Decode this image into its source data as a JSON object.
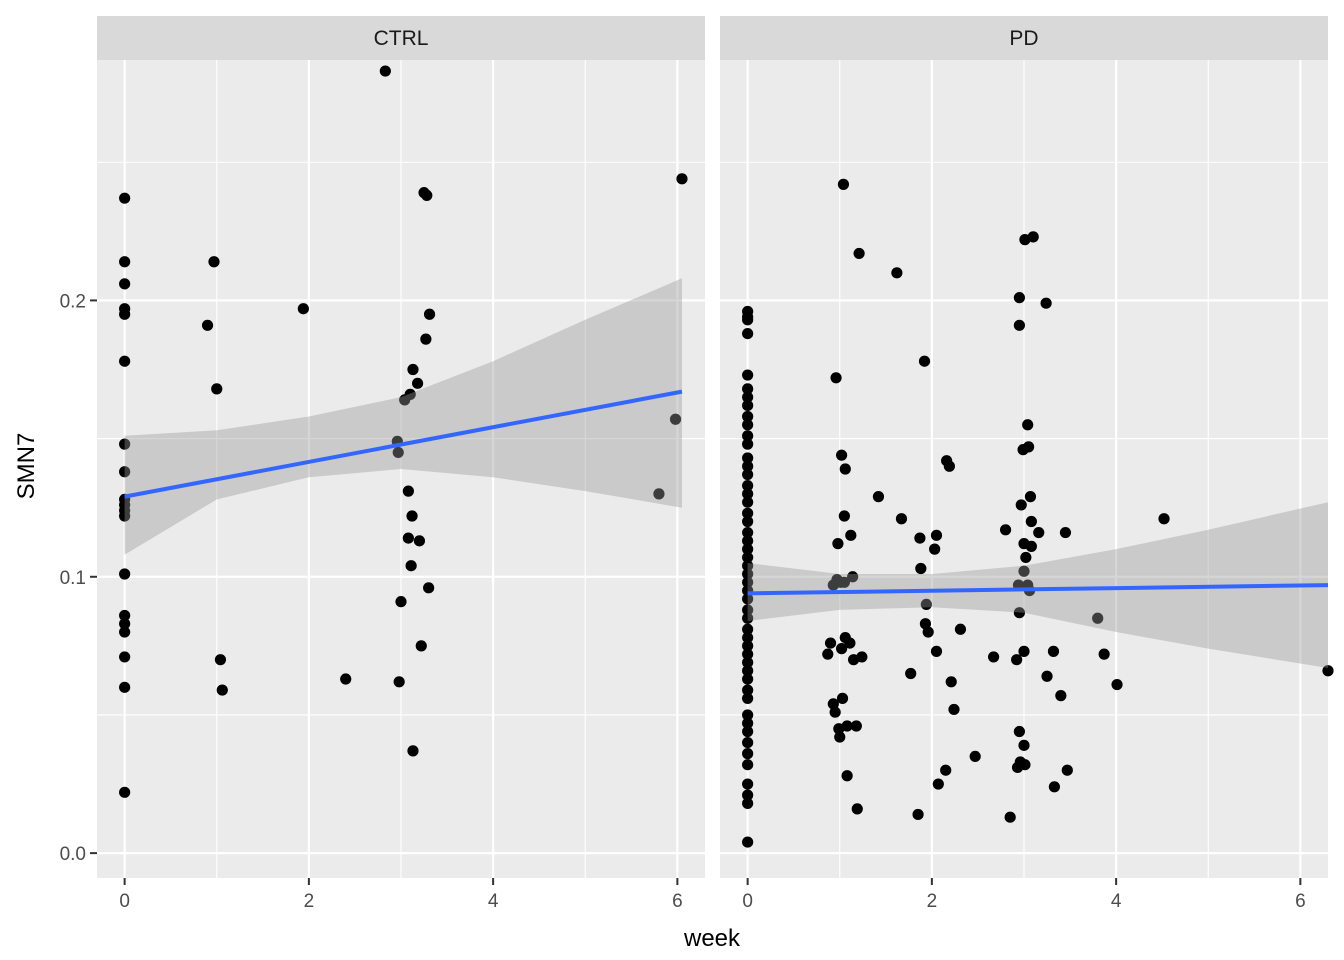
{
  "chart_data": {
    "type": "scatter",
    "xlabel": "week",
    "ylabel": "SMN7",
    "xlim": [
      -0.3,
      6.3
    ],
    "ylim": [
      -0.009,
      0.287
    ],
    "x_ticks": [
      0,
      2,
      4,
      6
    ],
    "y_ticks": [
      0.0,
      0.1,
      0.2
    ],
    "y_tick_labels": [
      "0.0",
      "0.1",
      "0.2"
    ],
    "grid": true,
    "colors": {
      "panel_bg": "#EBEBEB",
      "strip_bg": "#D9D9D9",
      "grid": "#FFFFFF",
      "points": "#000000",
      "fit_line": "#3366FF",
      "ribbon": "#999999"
    },
    "panels": [
      {
        "label": "CTRL",
        "fit": {
          "x0": 0,
          "y0": 0.129,
          "x1": 6.05,
          "y1": 0.167
        },
        "ribbon": [
          {
            "x": 0,
            "lo": 0.108,
            "hi": 0.151
          },
          {
            "x": 1,
            "lo": 0.128,
            "hi": 0.153
          },
          {
            "x": 2,
            "lo": 0.136,
            "hi": 0.158
          },
          {
            "x": 3,
            "lo": 0.139,
            "hi": 0.165
          },
          {
            "x": 4,
            "lo": 0.136,
            "hi": 0.178
          },
          {
            "x": 5,
            "lo": 0.131,
            "hi": 0.193
          },
          {
            "x": 6.05,
            "lo": 0.125,
            "hi": 0.208
          }
        ],
        "points": [
          [
            0,
            0.237
          ],
          [
            0,
            0.214
          ],
          [
            0,
            0.206
          ],
          [
            0,
            0.197
          ],
          [
            0,
            0.195
          ],
          [
            0,
            0.178
          ],
          [
            0,
            0.148
          ],
          [
            0,
            0.138
          ],
          [
            0,
            0.128
          ],
          [
            0,
            0.126
          ],
          [
            0,
            0.124
          ],
          [
            0,
            0.122
          ],
          [
            0,
            0.101
          ],
          [
            0,
            0.086
          ],
          [
            0,
            0.083
          ],
          [
            0,
            0.08
          ],
          [
            0,
            0.071
          ],
          [
            0,
            0.06
          ],
          [
            0,
            0.022
          ],
          [
            0.9,
            0.191
          ],
          [
            0.97,
            0.214
          ],
          [
            1.0,
            0.168
          ],
          [
            1.04,
            0.07
          ],
          [
            1.06,
            0.059
          ],
          [
            1.94,
            0.197
          ],
          [
            2.4,
            0.063
          ],
          [
            2.83,
            0.283
          ],
          [
            2.96,
            0.149
          ],
          [
            2.97,
            0.145
          ],
          [
            2.98,
            0.062
          ],
          [
            3.0,
            0.091
          ],
          [
            3.04,
            0.164
          ],
          [
            3.08,
            0.131
          ],
          [
            3.1,
            0.166
          ],
          [
            3.11,
            0.104
          ],
          [
            3.12,
            0.122
          ],
          [
            3.13,
            0.175
          ],
          [
            3.13,
            0.037
          ],
          [
            3.18,
            0.17
          ],
          [
            3.2,
            0.113
          ],
          [
            3.22,
            0.075
          ],
          [
            3.25,
            0.239
          ],
          [
            3.27,
            0.186
          ],
          [
            3.28,
            0.238
          ],
          [
            3.3,
            0.096
          ],
          [
            3.31,
            0.195
          ],
          [
            3.08,
            0.114
          ],
          [
            5.8,
            0.13
          ],
          [
            5.98,
            0.157
          ],
          [
            6.05,
            0.244
          ]
        ]
      },
      {
        "label": "PD",
        "fit": {
          "x0": 0,
          "y0": 0.094,
          "x1": 6.3,
          "y1": 0.097
        },
        "ribbon": [
          {
            "x": 0,
            "lo": 0.084,
            "hi": 0.105
          },
          {
            "x": 1,
            "lo": 0.088,
            "hi": 0.101
          },
          {
            "x": 2,
            "lo": 0.089,
            "hi": 0.101
          },
          {
            "x": 3,
            "lo": 0.087,
            "hi": 0.104
          },
          {
            "x": 4,
            "lo": 0.08,
            "hi": 0.11
          },
          {
            "x": 5,
            "lo": 0.074,
            "hi": 0.117
          },
          {
            "x": 6.3,
            "lo": 0.067,
            "hi": 0.127
          }
        ],
        "points": [
          [
            0,
            0.196
          ],
          [
            0,
            0.194
          ],
          [
            0,
            0.193
          ],
          [
            0,
            0.188
          ],
          [
            0,
            0.173
          ],
          [
            0,
            0.168
          ],
          [
            0,
            0.165
          ],
          [
            0,
            0.162
          ],
          [
            0,
            0.158
          ],
          [
            0,
            0.155
          ],
          [
            0,
            0.151
          ],
          [
            0,
            0.148
          ],
          [
            0,
            0.143
          ],
          [
            0,
            0.14
          ],
          [
            0,
            0.137
          ],
          [
            0,
            0.133
          ],
          [
            0,
            0.13
          ],
          [
            0,
            0.127
          ],
          [
            0,
            0.123
          ],
          [
            0,
            0.12
          ],
          [
            0,
            0.116
          ],
          [
            0,
            0.113
          ],
          [
            0,
            0.11
          ],
          [
            0,
            0.107
          ],
          [
            0,
            0.104
          ],
          [
            0,
            0.101
          ],
          [
            0,
            0.098
          ],
          [
            0,
            0.095
          ],
          [
            0,
            0.092
          ],
          [
            0,
            0.088
          ],
          [
            0,
            0.085
          ],
          [
            0,
            0.081
          ],
          [
            0,
            0.078
          ],
          [
            0,
            0.075
          ],
          [
            0,
            0.072
          ],
          [
            0,
            0.069
          ],
          [
            0,
            0.066
          ],
          [
            0,
            0.063
          ],
          [
            0,
            0.059
          ],
          [
            0,
            0.056
          ],
          [
            0,
            0.05
          ],
          [
            0,
            0.047
          ],
          [
            0,
            0.044
          ],
          [
            0,
            0.04
          ],
          [
            0,
            0.036
          ],
          [
            0,
            0.032
          ],
          [
            0,
            0.025
          ],
          [
            0,
            0.021
          ],
          [
            0,
            0.018
          ],
          [
            0,
            0.004
          ],
          [
            0.87,
            0.072
          ],
          [
            0.9,
            0.076
          ],
          [
            0.93,
            0.097
          ],
          [
            0.93,
            0.054
          ],
          [
            0.95,
            0.051
          ],
          [
            0.96,
            0.172
          ],
          [
            0.97,
            0.099
          ],
          [
            0.98,
            0.112
          ],
          [
            0.99,
            0.045
          ],
          [
            1.0,
            0.042
          ],
          [
            1.01,
            0.098
          ],
          [
            1.02,
            0.074
          ],
          [
            1.02,
            0.144
          ],
          [
            1.03,
            0.056
          ],
          [
            1.04,
            0.242
          ],
          [
            1.05,
            0.122
          ],
          [
            1.05,
            0.098
          ],
          [
            1.06,
            0.139
          ],
          [
            1.06,
            0.078
          ],
          [
            1.08,
            0.046
          ],
          [
            1.08,
            0.028
          ],
          [
            1.11,
            0.076
          ],
          [
            1.12,
            0.115
          ],
          [
            1.14,
            0.1
          ],
          [
            1.15,
            0.07
          ],
          [
            1.18,
            0.046
          ],
          [
            1.19,
            0.016
          ],
          [
            1.21,
            0.217
          ],
          [
            1.24,
            0.071
          ],
          [
            1.42,
            0.129
          ],
          [
            1.62,
            0.21
          ],
          [
            1.67,
            0.121
          ],
          [
            1.77,
            0.065
          ],
          [
            1.85,
            0.014
          ],
          [
            1.87,
            0.114
          ],
          [
            1.88,
            0.103
          ],
          [
            1.92,
            0.178
          ],
          [
            1.93,
            0.083
          ],
          [
            1.94,
            0.09
          ],
          [
            1.96,
            0.08
          ],
          [
            2.03,
            0.11
          ],
          [
            2.05,
            0.115
          ],
          [
            2.05,
            0.073
          ],
          [
            2.07,
            0.025
          ],
          [
            2.15,
            0.03
          ],
          [
            2.16,
            0.142
          ],
          [
            2.19,
            0.14
          ],
          [
            2.21,
            0.062
          ],
          [
            2.24,
            0.052
          ],
          [
            2.31,
            0.081
          ],
          [
            2.47,
            0.035
          ],
          [
            2.67,
            0.071
          ],
          [
            2.8,
            0.117
          ],
          [
            2.85,
            0.013
          ],
          [
            2.92,
            0.07
          ],
          [
            2.93,
            0.031
          ],
          [
            2.94,
            0.097
          ],
          [
            2.95,
            0.191
          ],
          [
            2.95,
            0.201
          ],
          [
            2.95,
            0.044
          ],
          [
            2.95,
            0.087
          ],
          [
            2.96,
            0.033
          ],
          [
            2.97,
            0.126
          ],
          [
            2.99,
            0.146
          ],
          [
            3.0,
            0.102
          ],
          [
            3.0,
            0.112
          ],
          [
            3.0,
            0.039
          ],
          [
            3.0,
            0.073
          ],
          [
            3.01,
            0.032
          ],
          [
            3.01,
            0.222
          ],
          [
            3.02,
            0.107
          ],
          [
            3.04,
            0.097
          ],
          [
            3.04,
            0.155
          ],
          [
            3.05,
            0.147
          ],
          [
            3.06,
            0.095
          ],
          [
            3.07,
            0.129
          ],
          [
            3.08,
            0.12
          ],
          [
            3.08,
            0.111
          ],
          [
            3.1,
            0.223
          ],
          [
            3.16,
            0.116
          ],
          [
            3.24,
            0.199
          ],
          [
            3.25,
            0.064
          ],
          [
            3.32,
            0.073
          ],
          [
            3.33,
            0.024
          ],
          [
            3.4,
            0.057
          ],
          [
            3.45,
            0.116
          ],
          [
            3.47,
            0.03
          ],
          [
            3.8,
            0.085
          ],
          [
            3.87,
            0.072
          ],
          [
            4.01,
            0.061
          ],
          [
            4.52,
            0.121
          ],
          [
            6.3,
            0.066
          ]
        ]
      }
    ]
  }
}
